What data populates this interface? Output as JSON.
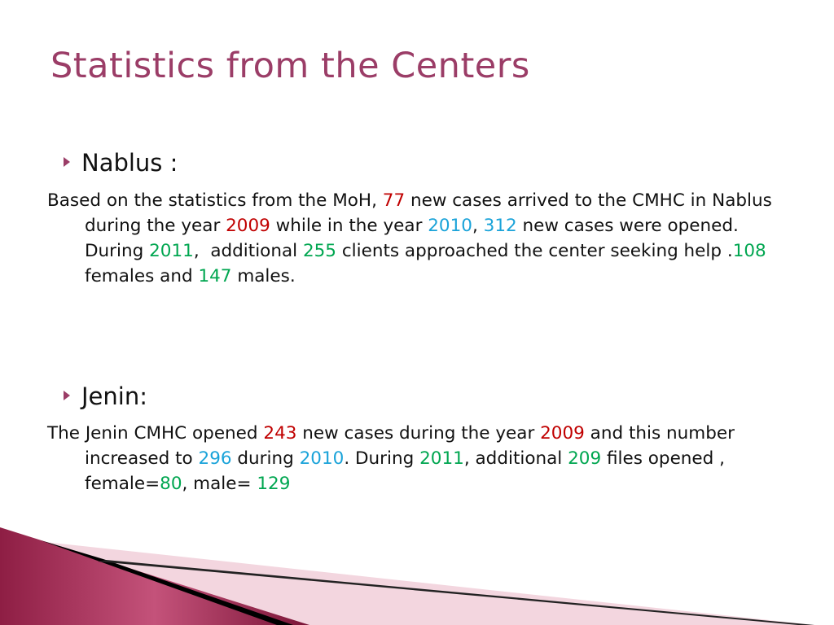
{
  "title": "Statistics from the Centers",
  "sections": [
    {
      "heading": "Nablus :",
      "paragraph": [
        {
          "text": "Based on the statistics from the MoH, "
        },
        {
          "text": "77",
          "color": "#c00000"
        },
        {
          "text": " new cases arrived to the CMHC in Nablus during the year "
        },
        {
          "text": "2009",
          "color": "#c00000"
        },
        {
          "text": " while in the year "
        },
        {
          "text": "2010",
          "color": "#1aa3d9"
        },
        {
          "text": ", "
        },
        {
          "text": "312",
          "color": "#1aa3d9"
        },
        {
          "text": " new cases were opened. During "
        },
        {
          "text": "2011",
          "color": "#00a650"
        },
        {
          "text": ",  additional "
        },
        {
          "text": "255",
          "color": "#00a650"
        },
        {
          "text": " clients approached the center seeking help ."
        },
        {
          "text": "108",
          "color": "#00a650"
        },
        {
          "text": " females and "
        },
        {
          "text": "147",
          "color": "#00a650"
        },
        {
          "text": " males."
        }
      ]
    },
    {
      "heading": "Jenin:",
      "paragraph": [
        {
          "text": "The Jenin CMHC opened "
        },
        {
          "text": "243",
          "color": "#c00000"
        },
        {
          "text": " new cases during the year "
        },
        {
          "text": "2009",
          "color": "#c00000"
        },
        {
          "text": " and this number increased to "
        },
        {
          "text": "296",
          "color": "#1aa3d9"
        },
        {
          "text": " during "
        },
        {
          "text": "2010",
          "color": "#1aa3d9"
        },
        {
          "text": ". During "
        },
        {
          "text": "2011",
          "color": "#00a650"
        },
        {
          "text": ", additional "
        },
        {
          "text": "209",
          "color": "#00a650"
        },
        {
          "text": " files opened , female="
        },
        {
          "text": "80",
          "color": "#00a650"
        },
        {
          "text": ", male= "
        },
        {
          "text": "129",
          "color": "#00a650"
        }
      ]
    }
  ]
}
